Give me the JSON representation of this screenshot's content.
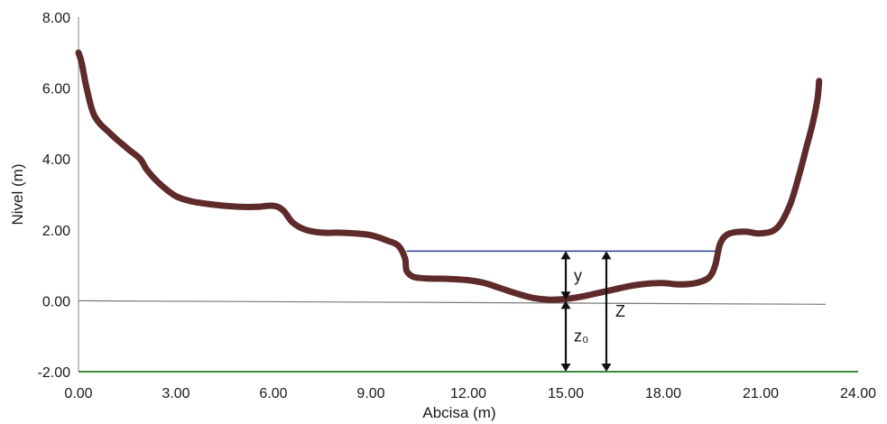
{
  "chart_data": {
    "type": "line",
    "xlabel": "Abcisa (m)",
    "ylabel": "Nivel (m)",
    "xlim": [
      0,
      24
    ],
    "ylim": [
      -2,
      8
    ],
    "x_ticks": [
      "0.00",
      "3.00",
      "6.00",
      "9.00",
      "12.00",
      "15.00",
      "18.00",
      "21.00",
      "24.00"
    ],
    "y_ticks": [
      "8.00",
      "6.00",
      "4.00",
      "2.00",
      "0.00",
      "-2.00"
    ],
    "colors": {
      "profile": "#5e2a2a",
      "water": "#2c3e8f",
      "datum": "#7a7a7a",
      "base": "#3a8a3a",
      "axis": "#9a9a9a",
      "arrow": "#111111"
    },
    "series": [
      {
        "x": [
          0.0,
          0.1,
          0.25,
          0.5,
          1.0,
          1.5,
          1.9,
          2.1,
          2.5,
          3.0,
          3.5,
          4.0,
          4.5,
          5.0,
          5.5,
          6.0,
          6.3,
          6.6,
          7.0,
          7.5,
          8.0,
          8.5,
          9.0,
          9.5,
          9.85,
          10.05,
          10.1,
          10.3,
          10.7,
          11.3,
          12.0,
          12.5,
          13.0,
          13.5,
          14.0,
          14.5,
          15.0,
          15.5,
          16.0,
          16.5,
          17.0,
          17.5,
          18.0,
          18.5,
          19.0,
          19.4,
          19.6,
          19.75,
          20.0,
          20.5,
          21.0,
          21.5,
          21.9,
          22.2,
          22.4,
          22.6,
          22.75,
          22.8
        ],
        "y": [
          7.0,
          6.7,
          6.0,
          5.2,
          4.7,
          4.3,
          4.0,
          3.7,
          3.3,
          2.95,
          2.8,
          2.73,
          2.68,
          2.65,
          2.65,
          2.68,
          2.55,
          2.2,
          2.0,
          1.92,
          1.92,
          1.9,
          1.85,
          1.7,
          1.55,
          1.2,
          0.85,
          0.68,
          0.63,
          0.62,
          0.58,
          0.5,
          0.35,
          0.2,
          0.08,
          0.03,
          0.05,
          0.12,
          0.22,
          0.32,
          0.42,
          0.48,
          0.5,
          0.46,
          0.5,
          0.65,
          1.0,
          1.6,
          1.88,
          1.95,
          1.9,
          2.05,
          2.7,
          3.6,
          4.3,
          5.0,
          5.7,
          6.2
        ]
      }
    ],
    "water_level": {
      "x": [
        10.1,
        19.7
      ],
      "y": 1.4
    },
    "datum_line": {
      "x": [
        0.0,
        23.0
      ],
      "y_start": 0.0,
      "y_end": -0.1
    },
    "base_line": {
      "x": [
        0.0,
        24.0
      ],
      "y": -2.0
    },
    "annotations": [
      {
        "label": "y",
        "x": 15.0,
        "from": 0.03,
        "to": 1.4
      },
      {
        "label": "z₀",
        "x": 15.0,
        "from": -2.0,
        "to": 0.0
      },
      {
        "label": "Z",
        "x": 16.25,
        "from": -2.0,
        "to": 1.4
      }
    ]
  }
}
